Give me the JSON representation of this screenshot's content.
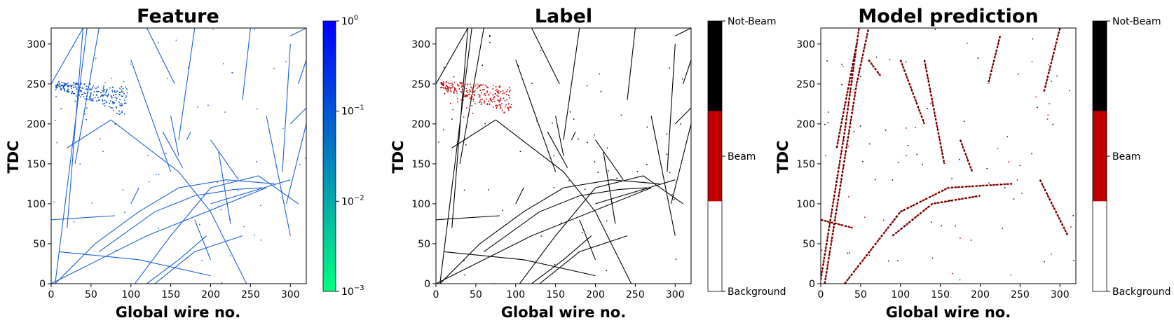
{
  "chart_data": [
    {
      "type": "heatmap",
      "title": "Feature",
      "xlabel": "Global wire no.",
      "ylabel": "TDC",
      "xlim": [
        0,
        320
      ],
      "ylim": [
        0,
        320
      ],
      "x_ticks": [
        0,
        50,
        100,
        150,
        200,
        250,
        300
      ],
      "y_ticks": [
        0,
        50,
        100,
        150,
        200,
        250,
        300
      ],
      "colorbar": {
        "scale": "log",
        "range": [
          0.001,
          1
        ],
        "tick_labels": [
          {
            "base": "10",
            "exp": "0"
          },
          {
            "base": "10",
            "exp": "−1"
          },
          {
            "base": "10",
            "exp": "−2"
          },
          {
            "base": "10",
            "exp": "−3"
          }
        ],
        "colors": [
          "#00ff80",
          "#0000ff"
        ]
      },
      "track_color": "#1a60d8",
      "cluster_color": "#0048c0"
    },
    {
      "type": "heatmap",
      "title": "Label",
      "xlabel": "Global wire no.",
      "ylabel": "TDC",
      "xlim": [
        0,
        320
      ],
      "ylim": [
        0,
        320
      ],
      "x_ticks": [
        0,
        50,
        100,
        150,
        200,
        250,
        300
      ],
      "y_ticks": [
        0,
        50,
        100,
        150,
        200,
        250,
        300
      ],
      "colorbar": {
        "scale": "categorical",
        "categories": [
          "Background",
          "Beam",
          "Not-Beam"
        ],
        "colors": [
          "#ffffff",
          "#c00000",
          "#000000"
        ]
      },
      "track_color": "#000000",
      "cluster_color": "#c00000"
    },
    {
      "type": "heatmap",
      "title": "Model prediction",
      "xlabel": "Global wire no.",
      "ylabel": "TDC",
      "xlim": [
        0,
        320
      ],
      "ylim": [
        0,
        320
      ],
      "x_ticks": [
        0,
        50,
        100,
        150,
        200,
        250,
        300
      ],
      "y_ticks": [
        0,
        50,
        100,
        150,
        200,
        250,
        300
      ],
      "colorbar": {
        "scale": "categorical",
        "categories": [
          "Background",
          "Beam",
          "Not-Beam"
        ],
        "colors": [
          "#ffffff",
          "#c00000",
          "#000000"
        ]
      },
      "track_color": "#000000",
      "cluster_color": "#c00000"
    }
  ],
  "tracks": [
    [
      [
        0,
        250
      ],
      [
        40,
        320
      ]
    ],
    [
      [
        5,
        0
      ],
      [
        45,
        320
      ]
    ],
    [
      [
        20,
        70
      ],
      [
        40,
        320
      ]
    ],
    [
      [
        30,
        150
      ],
      [
        60,
        320
      ]
    ],
    [
      [
        20,
        170
      ],
      [
        75,
        205
      ],
      [
        160,
        140
      ],
      [
        200,
        90
      ],
      [
        245,
        0
      ]
    ],
    [
      [
        10,
        40
      ],
      [
        110,
        30
      ],
      [
        200,
        10
      ]
    ],
    [
      [
        5,
        0
      ],
      [
        55,
        50
      ],
      [
        110,
        90
      ],
      [
        160,
        120
      ],
      [
        220,
        130
      ],
      [
        280,
        125
      ]
    ],
    [
      [
        60,
        40
      ],
      [
        130,
        90
      ],
      [
        180,
        110
      ],
      [
        230,
        118
      ],
      [
        265,
        120
      ]
    ],
    [
      [
        105,
        0
      ],
      [
        150,
        60
      ],
      [
        200,
        120
      ],
      [
        260,
        135
      ],
      [
        310,
        100
      ]
    ],
    [
      [
        120,
        0
      ],
      [
        160,
        30
      ],
      [
        195,
        60
      ]
    ],
    [
      [
        130,
        0
      ],
      [
        180,
        40
      ],
      [
        240,
        60
      ]
    ],
    [
      [
        0,
        0
      ],
      [
        120,
        60
      ],
      [
        270,
        120
      ]
    ],
    [
      [
        0,
        80
      ],
      [
        80,
        85
      ]
    ],
    [
      [
        100,
        280
      ],
      [
        150,
        140
      ]
    ],
    [
      [
        120,
        320
      ],
      [
        155,
        250
      ]
    ],
    [
      [
        150,
        210
      ],
      [
        160,
        160
      ]
    ],
    [
      [
        140,
        190
      ],
      [
        165,
        145
      ]
    ],
    [
      [
        180,
        320
      ],
      [
        160,
        180
      ]
    ],
    [
      [
        200,
        180
      ],
      [
        235,
        130
      ]
    ],
    [
      [
        225,
        75
      ],
      [
        210,
        165
      ]
    ],
    [
      [
        250,
        320
      ],
      [
        240,
        230
      ]
    ],
    [
      [
        270,
        210
      ],
      [
        300,
        60
      ]
    ],
    [
      [
        300,
        300
      ],
      [
        290,
        140
      ]
    ],
    [
      [
        295,
        100
      ],
      [
        320,
        200
      ]
    ],
    [
      [
        300,
        200
      ],
      [
        320,
        220
      ]
    ],
    [
      [
        310,
        250
      ],
      [
        320,
        280
      ]
    ],
    [
      [
        300,
        310
      ],
      [
        320,
        320
      ]
    ],
    [
      [
        170,
        180
      ],
      [
        175,
        190
      ]
    ],
    [
      [
        180,
        80
      ],
      [
        200,
        30
      ]
    ],
    [
      [
        200,
        100
      ],
      [
        300,
        130
      ]
    ],
    [
      [
        100,
        100
      ],
      [
        110,
        120
      ]
    ]
  ],
  "pred_tracks": [
    [
      [
        5,
        0
      ],
      [
        45,
        250
      ],
      [
        60,
        320
      ]
    ],
    [
      [
        0,
        5
      ],
      [
        30,
        190
      ],
      [
        48,
        320
      ]
    ],
    [
      [
        20,
        170
      ],
      [
        45,
        300
      ]
    ],
    [
      [
        130,
        280
      ],
      [
        155,
        150
      ]
    ],
    [
      [
        175,
        180
      ],
      [
        190,
        140
      ]
    ],
    [
      [
        225,
        310
      ],
      [
        210,
        250
      ]
    ],
    [
      [
        300,
        320
      ],
      [
        280,
        240
      ]
    ],
    [
      [
        275,
        130
      ],
      [
        310,
        60
      ]
    ],
    [
      [
        100,
        280
      ],
      [
        130,
        200
      ]
    ],
    [
      [
        30,
        0
      ],
      [
        100,
        90
      ],
      [
        160,
        120
      ],
      [
        240,
        125
      ]
    ],
    [
      [
        90,
        60
      ],
      [
        140,
        100
      ],
      [
        200,
        110
      ]
    ],
    [
      [
        0,
        80
      ],
      [
        40,
        70
      ]
    ],
    [
      [
        60,
        280
      ],
      [
        75,
        260
      ]
    ]
  ],
  "beam_cluster": {
    "x_range": [
      5,
      95
    ],
    "y_range": [
      210,
      260
    ]
  }
}
